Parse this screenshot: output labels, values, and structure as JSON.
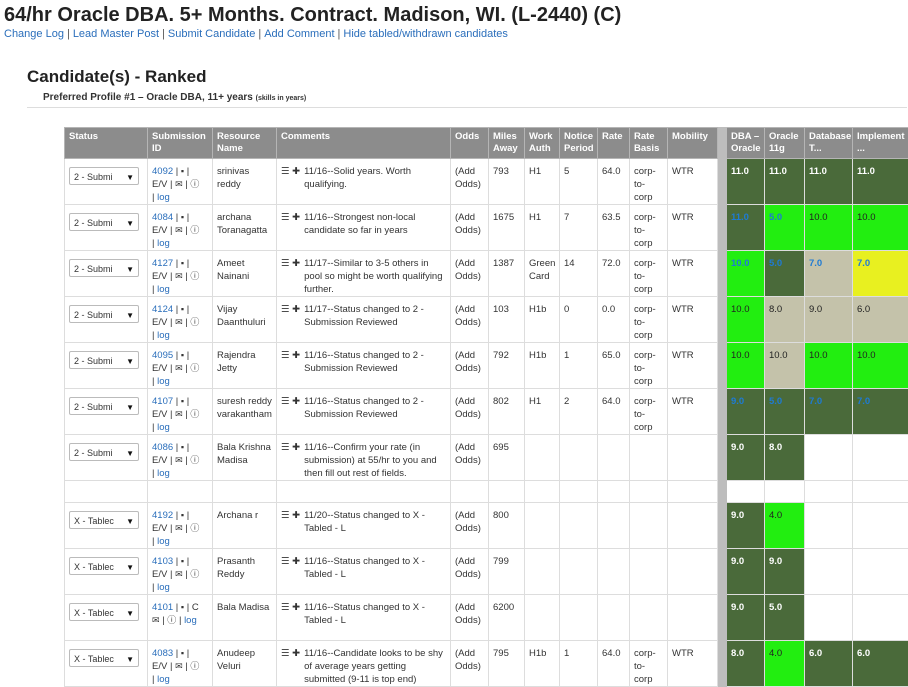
{
  "page": {
    "title": "64/hr Oracle DBA. 5+ Months. Contract. Madison, WI. (L-2440) (C)",
    "links": [
      "Change Log",
      "Lead Master Post",
      "Submit Candidate",
      "Add Comment",
      "Hide tabled/withdrawn candidates"
    ],
    "section_title": "Candidate(s) - Ranked",
    "profile": "Preferred Profile #1 – Oracle DBA, 11+ years",
    "profile_note": "(skills in years)"
  },
  "columns": [
    "Status",
    "Submission ID",
    "Resource Name",
    "Comments",
    "Odds",
    "Miles Away",
    "Work Auth",
    "Notice Period",
    "Rate",
    "Rate Basis",
    "Mobility",
    "DBA – Oracle",
    "Oracle 11g",
    "Database T...",
    "Implement ..."
  ],
  "labels": {
    "ev": "E/V",
    "log": "log",
    "sep": "|",
    "add_odds": "(Add Odds)",
    "c": "C"
  },
  "colors": {
    "dark_green": "#4a6a3a",
    "bright_green": "#22ee10",
    "khaki": "#c4c2aa",
    "yellow": "#e8f020",
    "header_gray": "#8c8c8c",
    "link_blue": "#2a6ebb"
  },
  "rows": [
    {
      "status": "2 - Submi",
      "id": "4092",
      "name": "srinivas reddy",
      "comment": "11/16--Solid years. Worth qualifying.",
      "miles": "793",
      "auth": "H1",
      "notice": "5",
      "rate": "64.0",
      "basis": "corp-to-corp",
      "mobility": "WTR",
      "skills": [
        {
          "v": "11.0",
          "bg": "#4a6a3a",
          "t": "w"
        },
        {
          "v": "11.0",
          "bg": "#4a6a3a",
          "t": "w"
        },
        {
          "v": "11.0",
          "bg": "#4a6a3a",
          "t": "w"
        },
        {
          "v": "11.0",
          "bg": "#4a6a3a",
          "t": "w"
        }
      ]
    },
    {
      "status": "2 - Submi",
      "id": "4084",
      "name": "archana Toranagatta",
      "comment": "11/16--Strongest non-local candidate so far in years",
      "miles": "1675",
      "auth": "H1",
      "notice": "7",
      "rate": "63.5",
      "basis": "corp-to-corp",
      "mobility": "WTR",
      "skills": [
        {
          "v": "11.0",
          "bg": "#4a6a3a",
          "t": "b"
        },
        {
          "v": "5.0",
          "bg": "#22ee10",
          "t": "b"
        },
        {
          "v": "10.0",
          "bg": "#22ee10",
          "t": "d"
        },
        {
          "v": "10.0",
          "bg": "#22ee10",
          "t": "d"
        }
      ]
    },
    {
      "status": "2 - Submi",
      "id": "4127",
      "name": "Ameet Nainani",
      "comment": "11/17--Similar to 3-5 others in pool so might be worth qualifying further.",
      "miles": "1387",
      "auth": "Green Card",
      "notice": "14",
      "rate": "72.0",
      "basis": "corp-to-corp",
      "mobility": "WTR",
      "skills": [
        {
          "v": "10.0",
          "bg": "#22ee10",
          "t": "b"
        },
        {
          "v": "5.0",
          "bg": "#4a6a3a",
          "t": "b"
        },
        {
          "v": "7.0",
          "bg": "#c4c2aa",
          "t": "b"
        },
        {
          "v": "7.0",
          "bg": "#e8f020",
          "t": "b"
        }
      ]
    },
    {
      "status": "2 - Submi",
      "id": "4124",
      "name": "Vijay Daanthuluri",
      "comment": "11/17--Status changed to 2 - Submission Reviewed",
      "miles": "103",
      "auth": "H1b",
      "notice": "0",
      "rate": "0.0",
      "basis": "corp-to-corp",
      "mobility": "WTR",
      "skills": [
        {
          "v": "10.0",
          "bg": "#22ee10",
          "t": "d"
        },
        {
          "v": "8.0",
          "bg": "#c4c2aa",
          "t": "d"
        },
        {
          "v": "9.0",
          "bg": "#c4c2aa",
          "t": "d"
        },
        {
          "v": "6.0",
          "bg": "#c4c2aa",
          "t": "d"
        }
      ]
    },
    {
      "status": "2 - Submi",
      "id": "4095",
      "name": "Rajendra Jetty",
      "comment": "11/16--Status changed to 2 - Submission Reviewed",
      "miles": "792",
      "auth": "H1b",
      "notice": "1",
      "rate": "65.0",
      "basis": "corp-to-corp",
      "mobility": "WTR",
      "skills": [
        {
          "v": "10.0",
          "bg": "#22ee10",
          "t": "d"
        },
        {
          "v": "10.0",
          "bg": "#c4c2aa",
          "t": "d"
        },
        {
          "v": "10.0",
          "bg": "#22ee10",
          "t": "d"
        },
        {
          "v": "10.0",
          "bg": "#22ee10",
          "t": "d"
        }
      ]
    },
    {
      "status": "2 - Submi",
      "id": "4107",
      "name": "suresh reddy varakantham",
      "comment": "11/16--Status changed to 2 - Submission Reviewed",
      "miles": "802",
      "auth": "H1",
      "notice": "2",
      "rate": "64.0",
      "basis": "corp-to-corp",
      "mobility": "WTR",
      "skills": [
        {
          "v": "9.0",
          "bg": "#4a6a3a",
          "t": "b"
        },
        {
          "v": "5.0",
          "bg": "#4a6a3a",
          "t": "b"
        },
        {
          "v": "7.0",
          "bg": "#4a6a3a",
          "t": "b"
        },
        {
          "v": "7.0",
          "bg": "#4a6a3a",
          "t": "b"
        }
      ]
    },
    {
      "status": "2 - Submi",
      "id": "4086",
      "name": "Bala Krishna Madisa",
      "comment": "11/16--Confirm your rate (in submission) at 55/hr to you and then fill out rest of fields.",
      "miles": "695",
      "auth": "",
      "notice": "",
      "rate": "",
      "basis": "",
      "mobility": "",
      "skills": [
        {
          "v": "9.0",
          "bg": "#4a6a3a",
          "t": "w"
        },
        {
          "v": "8.0",
          "bg": "#4a6a3a",
          "t": "w"
        },
        {
          "v": "",
          "bg": "#ffffff",
          "t": "d"
        },
        {
          "v": "",
          "bg": "#ffffff",
          "t": "d"
        }
      ]
    },
    {
      "gap": true
    },
    {
      "status": "X - Tablec",
      "id": "4192",
      "name": "Archana r",
      "comment": "11/20--Status changed to X - Tabled - L",
      "miles": "800",
      "auth": "",
      "notice": "",
      "rate": "",
      "basis": "",
      "mobility": "",
      "skills": [
        {
          "v": "9.0",
          "bg": "#4a6a3a",
          "t": "w"
        },
        {
          "v": "4.0",
          "bg": "#22ee10",
          "t": "d"
        },
        {
          "v": "",
          "bg": "#ffffff",
          "t": "d"
        },
        {
          "v": "",
          "bg": "#ffffff",
          "t": "d"
        }
      ]
    },
    {
      "status": "X - Tablec",
      "id": "4103",
      "name": "Prasanth Reddy",
      "comment": "11/16--Status changed to X - Tabled - L",
      "miles": "799",
      "auth": "",
      "notice": "",
      "rate": "",
      "basis": "",
      "mobility": "",
      "skills": [
        {
          "v": "9.0",
          "bg": "#4a6a3a",
          "t": "w"
        },
        {
          "v": "9.0",
          "bg": "#4a6a3a",
          "t": "w"
        },
        {
          "v": "",
          "bg": "#ffffff",
          "t": "d"
        },
        {
          "v": "",
          "bg": "#ffffff",
          "t": "d"
        }
      ]
    },
    {
      "status": "X - Tablec",
      "id": "4101",
      "name": "Bala Madisa",
      "comment": "11/16--Status changed to X - Tabled - L",
      "miles": "6200",
      "auth": "",
      "notice": "",
      "rate": "",
      "basis": "",
      "mobility": "",
      "short_icons": true,
      "skills": [
        {
          "v": "9.0",
          "bg": "#4a6a3a",
          "t": "w"
        },
        {
          "v": "5.0",
          "bg": "#4a6a3a",
          "t": "w"
        },
        {
          "v": "",
          "bg": "#ffffff",
          "t": "d"
        },
        {
          "v": "",
          "bg": "#ffffff",
          "t": "d"
        }
      ]
    },
    {
      "status": "X - Tablec",
      "id": "4083",
      "name": "Anudeep Veluri",
      "comment": "11/16--Candidate looks to be shy of average years getting submitted (9-11 is top end)",
      "miles": "795",
      "auth": "H1b",
      "notice": "1",
      "rate": "64.0",
      "basis": "corp-to-corp",
      "mobility": "WTR",
      "skills": [
        {
          "v": "8.0",
          "bg": "#4a6a3a",
          "t": "w"
        },
        {
          "v": "4.0",
          "bg": "#22ee10",
          "t": "d"
        },
        {
          "v": "6.0",
          "bg": "#4a6a3a",
          "t": "w"
        },
        {
          "v": "6.0",
          "bg": "#4a6a3a",
          "t": "w"
        }
      ]
    }
  ]
}
